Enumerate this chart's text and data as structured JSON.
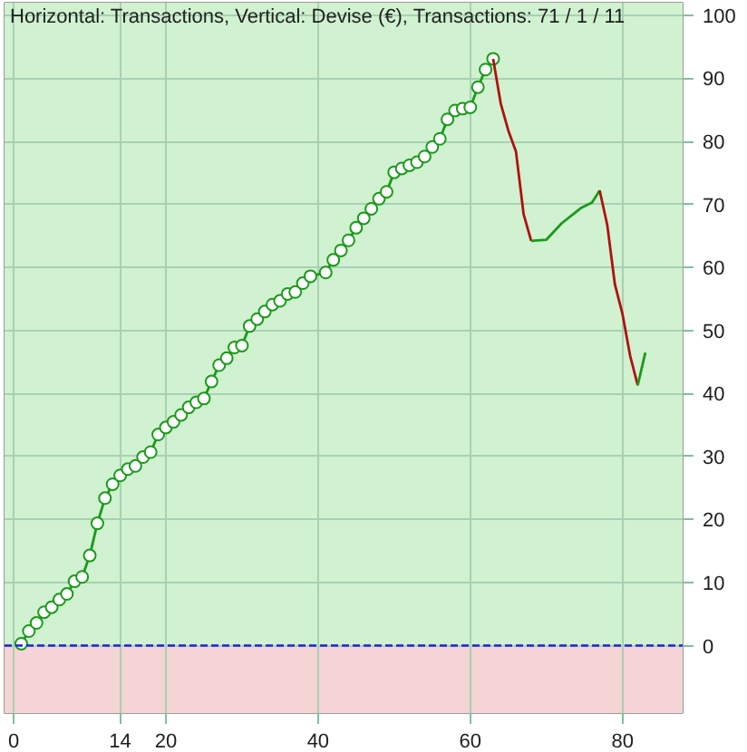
{
  "chart_data": {
    "type": "line",
    "title": "Horizontal: Transactions, Vertical: Devise (€), Transactions: 71 / 1 / 11",
    "xlim": [
      -1.2,
      87.9
    ],
    "ylim": [
      -10.7,
      102
    ],
    "xticks": [
      0,
      14,
      20,
      40,
      60,
      80
    ],
    "yticks": [
      0,
      10,
      20,
      30,
      40,
      50,
      60,
      70,
      80,
      90,
      100
    ],
    "grid": true,
    "line_style": "solid",
    "bands": [
      {
        "axis": "y",
        "from": 0,
        "to": 102,
        "color": "#d0f2d0"
      },
      {
        "axis": "y",
        "from": -10.7,
        "to": 0,
        "color": "#f4d4d4"
      }
    ],
    "ref_lines": [
      {
        "axis": "y",
        "value": 0,
        "color": "#2020e0",
        "line_style": "dashed"
      }
    ],
    "series": [
      {
        "color": "#1a9a1a",
        "marker": "circle",
        "x": [
          1,
          2,
          3,
          4,
          5,
          6,
          7,
          8,
          9,
          10,
          11,
          12,
          13,
          14,
          15,
          16,
          17,
          18,
          19,
          20,
          21,
          22,
          23,
          24,
          25,
          26,
          27,
          28,
          29,
          30,
          31,
          32,
          33,
          34,
          35,
          36,
          37,
          38,
          39,
          41,
          42,
          43,
          44,
          45,
          46,
          47,
          48,
          49,
          50,
          51,
          52,
          53,
          54,
          55,
          56,
          57,
          58,
          59,
          60,
          61,
          62,
          63
        ],
        "values": [
          0.3,
          2.3,
          3.6,
          5.3,
          6.1,
          7.3,
          8.2,
          10.2,
          10.9,
          14.3,
          19.4,
          23.4,
          25.6,
          27.0,
          28.0,
          28.5,
          29.9,
          30.7,
          33.5,
          34.6,
          35.5,
          36.6,
          37.8,
          38.6,
          39.2,
          41.9,
          44.5,
          45.6,
          47.3,
          47.6,
          50.7,
          51.8,
          53.0,
          54.1,
          54.7,
          55.8,
          56.1,
          57.5,
          58.6,
          59.2,
          61.2,
          62.7,
          64.3,
          66.3,
          67.8,
          69.3,
          70.9,
          72.0,
          75.1,
          75.7,
          76.2,
          76.7,
          77.6,
          79.1,
          80.4,
          83.5,
          84.9,
          85.2,
          85.4,
          88.6,
          91.4,
          93.1
        ]
      },
      {
        "color": "#b01010",
        "x": [
          63,
          64,
          65,
          66,
          67,
          68
        ],
        "values": [
          93.1,
          86.0,
          81.7,
          78.4,
          68.5,
          64.2
        ]
      },
      {
        "color": "#1a9a1a",
        "x": [
          68,
          70,
          72,
          74.5,
          76,
          77
        ],
        "values": [
          64.2,
          64.4,
          67.0,
          69.4,
          70.3,
          72.2
        ]
      },
      {
        "color": "#b01010",
        "x": [
          77,
          78,
          79,
          80,
          81,
          82
        ],
        "values": [
          72.2,
          66.7,
          57.3,
          52.6,
          46.0,
          41.3
        ]
      },
      {
        "color": "#1a9a1a",
        "x": [
          82,
          83
        ],
        "values": [
          41.3,
          46.5
        ]
      }
    ]
  }
}
